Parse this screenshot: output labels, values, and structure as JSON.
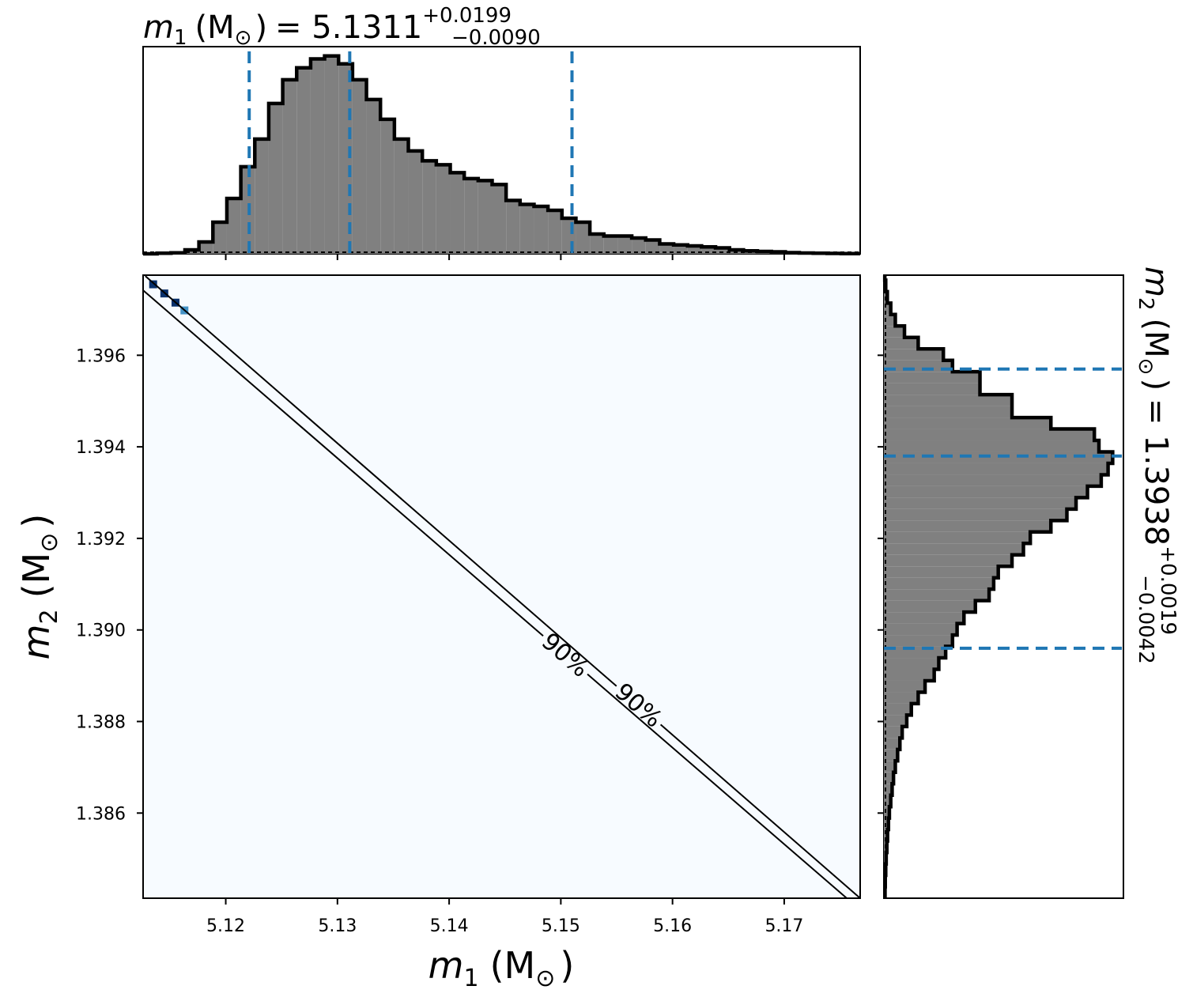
{
  "chart_data": {
    "type": "corner",
    "title_top": {
      "var": "m",
      "sub": "1",
      "unit": "(M",
      "unit_sub": "⊙",
      "close": ")",
      "eq": "= 5.1311",
      "plus": "+0.0199",
      "minus": "−0.0090"
    },
    "title_right": {
      "var": "m",
      "sub": "2",
      "unit": "(M",
      "unit_sub": "⊙",
      "close": ")",
      "eq": "= 1.3938",
      "plus": "+0.0019",
      "minus": "−0.0042"
    },
    "xlabel": {
      "var": "m",
      "sub": "1",
      "unit": "(M",
      "unit_sub": "⊙",
      "close": ")"
    },
    "ylabel": {
      "var": "m",
      "sub": "2",
      "unit": "(M",
      "unit_sub": "⊙",
      "close": ")"
    },
    "xlim": [
      5.1126,
      5.1768
    ],
    "ylim": [
      1.38414,
      1.39775
    ],
    "xticks": [
      5.12,
      5.13,
      5.14,
      5.15,
      5.16,
      5.17
    ],
    "xtick_labels": [
      "5.12",
      "5.13",
      "5.14",
      "5.15",
      "5.16",
      "5.17"
    ],
    "yticks": [
      1.386,
      1.388,
      1.39,
      1.392,
      1.394,
      1.396
    ],
    "ytick_labels": [
      "1.386",
      "1.388",
      "1.390",
      "1.392",
      "1.394",
      "1.396"
    ],
    "m1_histogram": {
      "bin_start": 5.1126,
      "bin_width": 0.00125,
      "counts": [
        0,
        0.003,
        0.005,
        0.02,
        0.06,
        0.16,
        0.28,
        0.44,
        0.58,
        0.76,
        0.88,
        0.94,
        0.985,
        1.0,
        0.96,
        0.88,
        0.78,
        0.68,
        0.58,
        0.52,
        0.47,
        0.45,
        0.41,
        0.38,
        0.37,
        0.35,
        0.27,
        0.25,
        0.24,
        0.22,
        0.18,
        0.16,
        0.1,
        0.09,
        0.09,
        0.08,
        0.07,
        0.05,
        0.045,
        0.04,
        0.035,
        0.03,
        0.02,
        0.015,
        0.012,
        0.01,
        0.006,
        0.004,
        0.003,
        0.002,
        0.001,
        0.001
      ]
    },
    "m1_quantiles": [
      5.1221,
      5.1311,
      5.151
    ],
    "m2_histogram": {
      "bin_start": 1.38414,
      "bin_width": 0.00025,
      "counts": [
        0.005,
        0.006,
        0.008,
        0.01,
        0.013,
        0.016,
        0.02,
        0.024,
        0.03,
        0.036,
        0.042,
        0.05,
        0.06,
        0.07,
        0.08,
        0.1,
        0.12,
        0.15,
        0.18,
        0.22,
        0.24,
        0.27,
        0.3,
        0.32,
        0.35,
        0.4,
        0.46,
        0.48,
        0.5,
        0.56,
        0.61,
        0.64,
        0.73,
        0.8,
        0.84,
        0.89,
        0.95,
        0.98,
        1.0,
        0.94,
        0.92,
        0.73,
        0.56,
        0.56,
        0.42,
        0.42,
        0.3,
        0.26,
        0.15,
        0.09,
        0.05,
        0.03,
        0.015,
        0.008,
        0.004
      ]
    },
    "m2_quantiles": [
      1.3896,
      1.3938,
      1.3957
    ],
    "contour_label": "90%",
    "contour_lines": [
      [
        [
          5.1128,
          1.39773
        ],
        [
          5.1768,
          1.38414
        ]
      ],
      [
        [
          5.1126,
          1.39742
        ],
        [
          5.1756,
          1.38414
        ]
      ]
    ],
    "hot_cells": [
      [
        5.1135,
        1.39755
      ],
      [
        5.1145,
        1.39735
      ],
      [
        5.1155,
        1.39715
      ],
      [
        5.1163,
        1.39698
      ]
    ],
    "colors": {
      "hist_fill": "#808080",
      "hist_edge": "#000000",
      "quantile": "#1f77b4",
      "density_bg": "#f7fbff",
      "density_hot": "#08306b",
      "density_mid": "#4292c6",
      "contour": "#000000"
    }
  }
}
